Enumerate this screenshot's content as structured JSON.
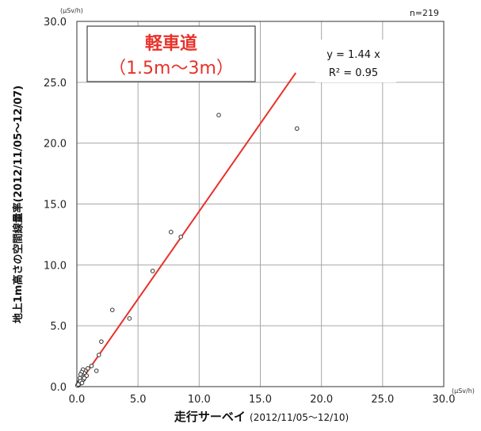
{
  "chart_data": {
    "type": "scatter",
    "title_box": {
      "line1": "軽車道",
      "line2": "（1.5m～3m）"
    },
    "n_label": "n=219",
    "y_unit": "(μSv/h)",
    "x_unit": "(μSv/h)",
    "ylabel": "地上1m高さの空間線量率(2012/11/05～12/07)",
    "xlabel": "走行サーベイ",
    "xlabel_period": "(2012/11/05～12/10)",
    "xlim": [
      0,
      30
    ],
    "ylim": [
      0,
      30
    ],
    "xticks": [
      "0.0",
      "5.0",
      "10.0",
      "15.0",
      "20.0",
      "25.0",
      "30.0"
    ],
    "yticks": [
      "0.0",
      "5.0",
      "10.0",
      "15.0",
      "20.0",
      "25.0",
      "30.0"
    ],
    "grid": true,
    "regression": {
      "equation": "y = 1.44 x",
      "r2": "R² = 0.95",
      "slope": 1.44,
      "x_range": [
        0,
        17.9
      ],
      "color": "#e8312a"
    },
    "marker_color": "#333333",
    "title_color": "#e8312a",
    "points": [
      [
        11.6,
        22.3
      ],
      [
        18.0,
        21.2
      ],
      [
        7.7,
        12.7
      ],
      [
        8.5,
        12.3
      ],
      [
        6.2,
        9.5
      ],
      [
        4.3,
        5.6
      ],
      [
        2.9,
        6.3
      ],
      [
        2.0,
        3.7
      ],
      [
        1.8,
        2.6
      ],
      [
        1.6,
        1.3
      ],
      [
        1.2,
        1.7
      ],
      [
        0.9,
        1.5
      ],
      [
        0.7,
        1.3
      ],
      [
        0.6,
        1.1
      ],
      [
        0.5,
        1.4
      ],
      [
        0.5,
        0.9
      ],
      [
        0.4,
        1.2
      ],
      [
        0.4,
        0.8
      ],
      [
        0.35,
        0.6
      ],
      [
        0.3,
        1.0
      ],
      [
        0.3,
        0.5
      ],
      [
        0.25,
        0.7
      ],
      [
        0.2,
        0.4
      ],
      [
        0.2,
        0.3
      ],
      [
        0.15,
        0.3
      ],
      [
        0.15,
        0.2
      ],
      [
        0.1,
        0.2
      ],
      [
        0.1,
        0.1
      ],
      [
        0.08,
        0.15
      ],
      [
        0.05,
        0.1
      ],
      [
        0.55,
        0.6
      ],
      [
        0.45,
        0.5
      ],
      [
        0.65,
        0.8
      ],
      [
        0.8,
        0.9
      ],
      [
        0.35,
        0.35
      ],
      [
        0.25,
        0.25
      ],
      [
        0.12,
        0.18
      ],
      [
        0.6,
        0.7
      ],
      [
        0.28,
        0.45
      ],
      [
        0.42,
        0.3
      ]
    ]
  }
}
